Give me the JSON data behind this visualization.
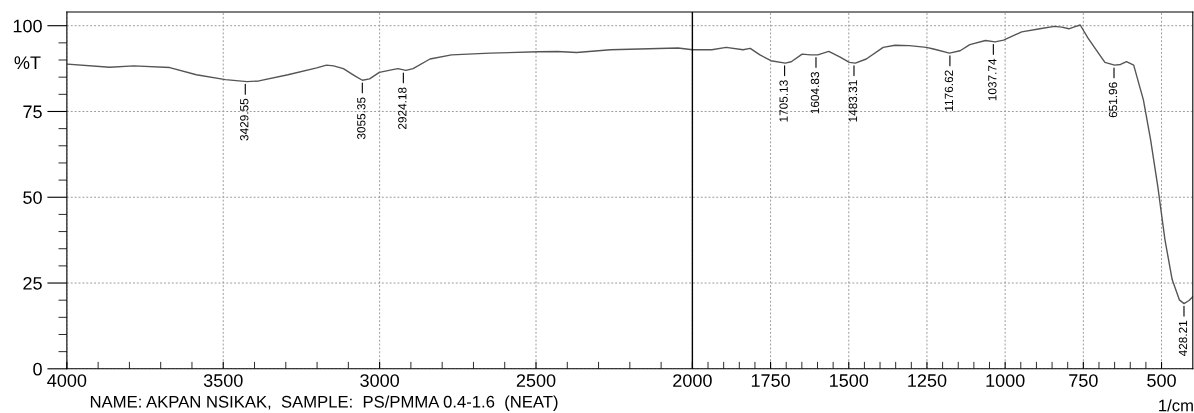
{
  "chart_data": {
    "type": "line",
    "ylabel": "%T",
    "xlabel": "1/cm",
    "x": [
      3997,
      3863,
      3786,
      3671,
      3586,
      3493,
      3424,
      3386,
      3293,
      3201,
      3170,
      3147,
      3116,
      3078,
      3055,
      3032,
      3001,
      2970,
      2942,
      2916,
      2893,
      2839,
      2770,
      2647,
      2493,
      2431,
      2370,
      2262,
      2046,
      2000,
      1938,
      1892,
      1838,
      1815,
      1784,
      1749,
      1703,
      1684,
      1649,
      1622,
      1599,
      1564,
      1529,
      1498,
      1479,
      1444,
      1390,
      1352,
      1306,
      1252,
      1229,
      1178,
      1144,
      1113,
      1063,
      1032,
      1005,
      947,
      889,
      843,
      819,
      796,
      781,
      760,
      735,
      704,
      681,
      650,
      631,
      612,
      589,
      558,
      535,
      512,
      489,
      466,
      443,
      428,
      412,
      400
    ],
    "series": [
      {
        "color": "#555555",
        "values": [
          88.8,
          87.9,
          88.3,
          87.8,
          85.7,
          84.3,
          83.7,
          83.9,
          85.7,
          87.7,
          88.5,
          88.3,
          87.5,
          85.3,
          84.1,
          84.5,
          86.4,
          87.0,
          87.5,
          87.0,
          87.5,
          90.3,
          91.5,
          92.0,
          92.4,
          92.5,
          92.2,
          93.0,
          93.5,
          93.0,
          93.0,
          93.7,
          93.0,
          93.4,
          91.5,
          89.8,
          89.1,
          89.5,
          91.7,
          91.5,
          91.5,
          92.5,
          90.9,
          89.3,
          89.1,
          90.3,
          93.7,
          94.3,
          94.2,
          93.7,
          93.2,
          92.0,
          92.7,
          94.5,
          95.7,
          95.3,
          95.8,
          98.2,
          99.1,
          99.8,
          99.6,
          99.1,
          99.6,
          100.2,
          96.4,
          92.3,
          89.3,
          88.5,
          88.7,
          89.5,
          88.5,
          78.4,
          66.8,
          53.2,
          37.6,
          26.0,
          20.1,
          19.0,
          19.9,
          21.0
        ]
      }
    ],
    "xlim": [
      4000,
      400
    ],
    "xticks": [
      4000,
      3500,
      3000,
      2500,
      2000,
      1750,
      1500,
      1250,
      1000,
      750,
      500
    ],
    "ylim": [
      0,
      104
    ],
    "yticks": [
      0,
      25,
      50,
      75,
      100
    ],
    "grid": true,
    "line_style": "solid",
    "marker": "none",
    "ref_lines": [
      {
        "axis": "x",
        "value": 2000,
        "color": "#000000",
        "line_style": "solid"
      }
    ],
    "annotations": [
      {
        "text": "3429.55",
        "x": 3429.55,
        "y": 83.7
      },
      {
        "text": "3055.35",
        "x": 3055.35,
        "y": 84.1
      },
      {
        "text": "2924.18",
        "x": 2924.18,
        "y": 87.0
      },
      {
        "text": "1705.13",
        "x": 1705.13,
        "y": 89.1
      },
      {
        "text": "1604.83",
        "x": 1604.83,
        "y": 91.5
      },
      {
        "text": "1483.31",
        "x": 1483.31,
        "y": 89.1
      },
      {
        "text": "1176.62",
        "x": 1176.62,
        "y": 92.0
      },
      {
        "text": "1037.74",
        "x": 1037.74,
        "y": 95.3
      },
      {
        "text": "651.96",
        "x": 651.96,
        "y": 88.5
      },
      {
        "text": "428.21",
        "x": 428.21,
        "y": 19.0
      },
      "NAME: AKPAN NSIKAK,  SAMPLE:  PS/PMMA 0.4-1.6  (NEAT)"
    ]
  }
}
